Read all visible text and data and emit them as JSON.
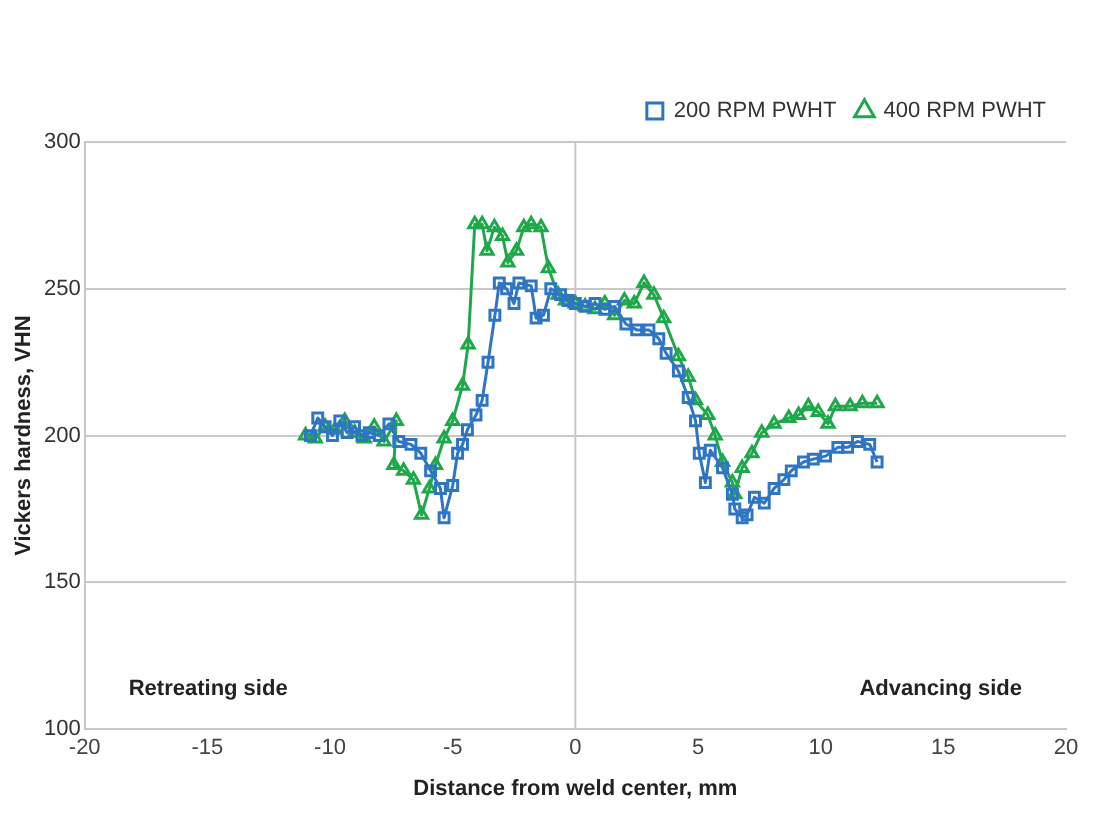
{
  "chart_data": {
    "type": "line",
    "xlabel": "Distance from weld center, mm",
    "ylabel": "Vickers hardness, VHN",
    "xlim": [
      -20,
      20
    ],
    "xticks": [
      -20,
      -15,
      -10,
      -5,
      0,
      5,
      10,
      15,
      20
    ],
    "ylim": [
      100,
      300
    ],
    "yticks": [
      100,
      150,
      200,
      250,
      300
    ],
    "grid": "y",
    "legend": "top right",
    "ref_lines": [
      {
        "axis": "x",
        "value": 0,
        "color": "#c8c8c8"
      }
    ],
    "annotations": [
      "Retreating side",
      "Advancing side"
    ],
    "series": [
      {
        "name": "200 RPM PWHT",
        "color": "#2e75c6",
        "marker": "square",
        "x": [
          -10.8,
          -10.5,
          -10.2,
          -9.9,
          -9.6,
          -9.3,
          -9,
          -8.7,
          -8.4,
          -8,
          -7.6,
          -7.2,
          -6.7,
          -6.3,
          -5.9,
          -5.5,
          -5.35,
          -5,
          -4.8,
          -4.6,
          -4.4,
          -4.05,
          -3.8,
          -3.56,
          -3.28,
          -3.1,
          -2.8,
          -2.5,
          -2.3,
          -1.8,
          -1.6,
          -1.3,
          -1,
          -0.6,
          -0.3,
          0,
          0.4,
          0.8,
          1.2,
          1.6,
          2.06,
          2.5,
          3,
          3.4,
          3.7,
          4.2,
          4.6,
          4.9,
          5.05,
          5.3,
          5.5,
          6,
          6.4,
          6.5,
          6.8,
          7,
          7.3,
          7.7,
          8.1,
          8.5,
          8.8,
          9.3,
          9.7,
          10.2,
          10.7,
          11.1,
          11.5,
          12,
          12.3
        ],
        "values": [
          200,
          206,
          203,
          200,
          205,
          201,
          203,
          200,
          201,
          200,
          204,
          198,
          197,
          194,
          188,
          182,
          172,
          183,
          194,
          197,
          202,
          207,
          212,
          225,
          241,
          252,
          250,
          245,
          252,
          251,
          240,
          241,
          250,
          248,
          246,
          245,
          244,
          245,
          243,
          244,
          238,
          236,
          236,
          233,
          228,
          222,
          213,
          205,
          194,
          184,
          195,
          189,
          180,
          175,
          172,
          173,
          179,
          177,
          182,
          185,
          188,
          191,
          192,
          193,
          196,
          196,
          198,
          197,
          191
        ]
      },
      {
        "name": "400 RPM PWHT",
        "color": "#1fa84a",
        "marker": "triangle",
        "x": [
          -11,
          -10.6,
          -10.2,
          -9.8,
          -9.4,
          -9,
          -8.6,
          -8.2,
          -7.8,
          -7.3,
          -7.4,
          -7,
          -6.6,
          -6.27,
          -5.95,
          -5.7,
          -5.35,
          -5,
          -4.6,
          -4.37,
          -4.1,
          -3.8,
          -3.6,
          -3.3,
          -2.97,
          -2.75,
          -2.4,
          -2.1,
          -1.8,
          -1.4,
          -1.1,
          -0.7,
          -0.4,
          0,
          0.4,
          0.8,
          1.2,
          1.6,
          2,
          2.4,
          2.8,
          3.2,
          3.6,
          4.2,
          4.6,
          4.9,
          5.4,
          5.7,
          6,
          6.4,
          6.5,
          6.8,
          7.2,
          7.6,
          8.1,
          8.7,
          9.1,
          9.5,
          9.9,
          10.3,
          10.6,
          11.2,
          11.7,
          12.3
        ],
        "values": [
          200,
          199,
          203,
          202,
          205,
          201,
          199,
          203,
          198,
          205,
          190,
          188,
          185,
          173,
          182,
          190,
          199,
          205,
          217,
          231,
          272,
          272,
          263,
          271,
          268,
          259,
          263,
          271,
          272,
          271,
          257,
          248,
          246,
          245,
          244,
          243,
          245,
          241,
          246,
          245,
          252,
          248,
          240,
          227,
          220,
          212,
          207,
          200,
          191,
          184,
          180,
          189,
          194,
          201,
          204,
          206,
          207,
          210,
          208,
          204,
          210,
          210,
          211,
          211
        ]
      }
    ]
  }
}
